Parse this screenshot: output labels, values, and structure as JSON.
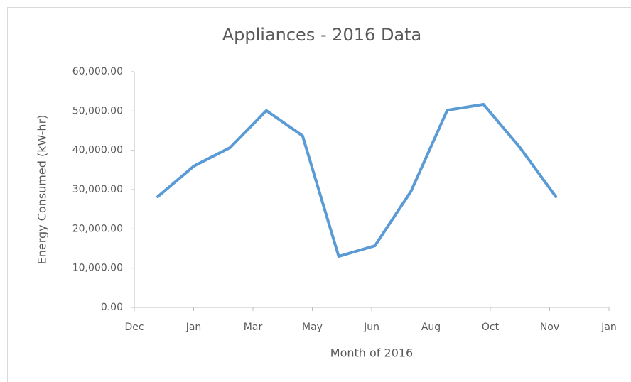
{
  "chart_data": {
    "type": "line",
    "title": "Appliances - 2016 Data",
    "x_label": "Month of 2016",
    "y_label": "Energy Consumed (kW-hr)",
    "x": [
      1,
      2,
      3,
      4,
      5,
      6,
      7,
      8,
      9,
      10,
      11,
      12
    ],
    "series": [
      {
        "name": "Energy Consumed (kW-hr)",
        "color": "#5b9bd5",
        "values": [
          28200,
          36000,
          40700,
          50100,
          43700,
          13000,
          15700,
          29600,
          50200,
          51700,
          40800,
          28200
        ]
      }
    ],
    "xlim": [
      0.35,
      13.47
    ],
    "xticks": [
      {
        "value": 0.35,
        "label": "Dec"
      },
      {
        "value": 1.99,
        "label": "Jan"
      },
      {
        "value": 3.63,
        "label": "Mar"
      },
      {
        "value": 5.27,
        "label": "May"
      },
      {
        "value": 6.91,
        "label": "Jun"
      },
      {
        "value": 8.55,
        "label": "Aug"
      },
      {
        "value": 10.19,
        "label": "Oct"
      },
      {
        "value": 11.83,
        "label": "Nov"
      },
      {
        "value": 13.47,
        "label": "Jan"
      }
    ],
    "ylim": [
      0,
      60000
    ],
    "yticks": [
      {
        "value": 0,
        "label": "0.00"
      },
      {
        "value": 10000,
        "label": "10,000.00"
      },
      {
        "value": 20000,
        "label": "20,000.00"
      },
      {
        "value": 30000,
        "label": "30,000.00"
      },
      {
        "value": 40000,
        "label": "40,000.00"
      },
      {
        "value": 50000,
        "label": "50,000.00"
      },
      {
        "value": 60000,
        "label": "60,000.00"
      }
    ],
    "grid": false
  }
}
